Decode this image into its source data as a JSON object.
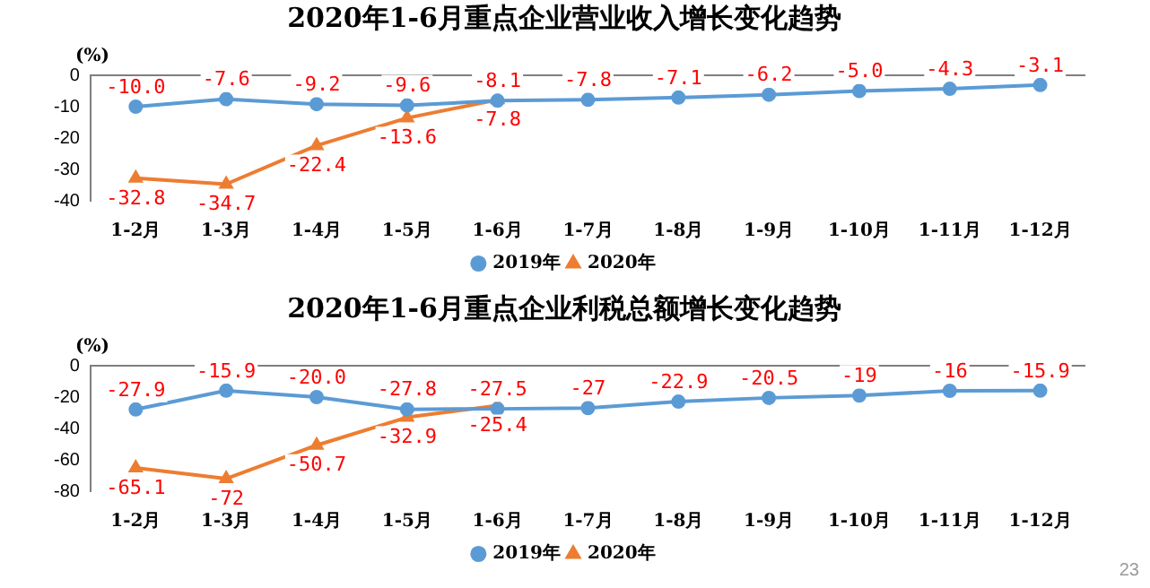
{
  "chart_data": [
    {
      "type": "line",
      "title": "2020年1-6月重点企业营业收入增长变化趋势",
      "ylabel": "(%)",
      "categories": [
        "1-2月",
        "1-3月",
        "1-4月",
        "1-5月",
        "1-6月",
        "1-7月",
        "1-8月",
        "1-9月",
        "1-10月",
        "1-11月",
        "1-12月"
      ],
      "series": [
        {
          "name": "2019年",
          "color": "#5b9bd5",
          "marker": "circle",
          "values": [
            -10.0,
            -7.6,
            -9.2,
            -9.6,
            -8.1,
            -7.8,
            -7.1,
            -6.2,
            -5.0,
            -4.3,
            -3.1
          ],
          "value_labels": [
            "-10.0",
            "-7.6",
            "-9.2",
            "-9.6",
            "-8.1",
            "-7.8",
            "-7.1",
            "-6.2",
            "-5.0",
            "-4.3",
            "-3.1"
          ]
        },
        {
          "name": "2020年",
          "color": "#ed7d31",
          "marker": "triangle",
          "values": [
            -32.8,
            -34.7,
            -22.4,
            -13.6,
            -7.8,
            null,
            null,
            null,
            null,
            null,
            null
          ],
          "value_labels": [
            "-32.8",
            "-34.7",
            "-22.4",
            "-13.6",
            "-7.8",
            null,
            null,
            null,
            null,
            null,
            null
          ]
        }
      ],
      "ylim": [
        -40,
        0
      ],
      "yticks": [
        -40,
        -30,
        -20,
        -10,
        0
      ],
      "legend": "bottom"
    },
    {
      "type": "line",
      "title": "2020年1-6月重点企业利税总额增长变化趋势",
      "ylabel": "(%)",
      "categories": [
        "1-2月",
        "1-3月",
        "1-4月",
        "1-5月",
        "1-6月",
        "1-7月",
        "1-8月",
        "1-9月",
        "1-10月",
        "1-11月",
        "1-12月"
      ],
      "series": [
        {
          "name": "2019年",
          "color": "#5b9bd5",
          "marker": "circle",
          "values": [
            -27.9,
            -15.9,
            -20.0,
            -27.8,
            -27.5,
            -27,
            -22.9,
            -20.5,
            -19,
            -16,
            -15.9
          ],
          "value_labels": [
            "-27.9",
            "-15.9",
            "-20.0",
            "-27.8",
            "-27.5",
            "-27",
            "-22.9",
            "-20.5",
            "-19",
            "-16",
            "-15.9"
          ]
        },
        {
          "name": "2020年",
          "color": "#ed7d31",
          "marker": "triangle",
          "values": [
            -65.1,
            -72,
            -50.7,
            -32.9,
            -25.4,
            null,
            null,
            null,
            null,
            null,
            null
          ],
          "value_labels": [
            "-65.1",
            "-72",
            "-50.7",
            "-32.9",
            "-25.4",
            null,
            null,
            null,
            null,
            null,
            null
          ]
        }
      ],
      "ylim": [
        -80,
        0
      ],
      "yticks": [
        -80,
        -60,
        -40,
        -20,
        0
      ],
      "legend": "bottom",
      "annotations": [
        "23"
      ]
    }
  ]
}
